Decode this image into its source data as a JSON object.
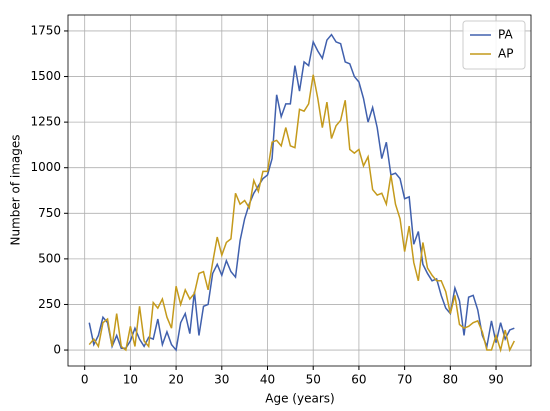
{
  "chart_data": {
    "type": "line",
    "xlabel": "Age (years)",
    "ylabel": "Number of images",
    "x": [
      1,
      2,
      3,
      4,
      5,
      6,
      7,
      8,
      9,
      10,
      11,
      12,
      13,
      14,
      15,
      16,
      17,
      18,
      19,
      20,
      21,
      22,
      23,
      24,
      25,
      26,
      27,
      28,
      29,
      30,
      31,
      32,
      33,
      34,
      35,
      36,
      37,
      38,
      39,
      40,
      41,
      42,
      43,
      44,
      45,
      46,
      47,
      48,
      49,
      50,
      51,
      52,
      53,
      54,
      55,
      56,
      57,
      58,
      59,
      60,
      61,
      62,
      63,
      64,
      65,
      66,
      67,
      68,
      69,
      70,
      71,
      72,
      73,
      74,
      75,
      76,
      77,
      78,
      79,
      80,
      81,
      82,
      83,
      84,
      85,
      86,
      87,
      88,
      89,
      90,
      91,
      92,
      93,
      94
    ],
    "series": [
      {
        "name": "PA",
        "color": "#4060ad",
        "values": [
          150,
          30,
          80,
          180,
          150,
          20,
          80,
          10,
          10,
          50,
          120,
          60,
          20,
          70,
          60,
          170,
          30,
          100,
          30,
          0,
          150,
          200,
          90,
          320,
          80,
          240,
          250,
          420,
          470,
          410,
          490,
          430,
          400,
          600,
          720,
          800,
          860,
          900,
          940,
          960,
          1050,
          1400,
          1280,
          1350,
          1350,
          1560,
          1420,
          1580,
          1560,
          1690,
          1640,
          1600,
          1700,
          1730,
          1690,
          1680,
          1580,
          1570,
          1500,
          1470,
          1380,
          1250,
          1330,
          1220,
          1050,
          1140,
          960,
          970,
          940,
          830,
          840,
          580,
          650,
          470,
          420,
          380,
          390,
          300,
          230,
          200,
          340,
          270,
          80,
          290,
          300,
          220,
          80,
          20,
          160,
          40,
          150,
          60,
          110,
          120
        ]
      },
      {
        "name": "AP",
        "color": "#c49a1c",
        "values": [
          30,
          60,
          20,
          150,
          170,
          20,
          200,
          20,
          0,
          130,
          20,
          240,
          50,
          20,
          260,
          230,
          280,
          180,
          120,
          350,
          250,
          330,
          280,
          310,
          420,
          430,
          330,
          480,
          620,
          520,
          590,
          610,
          860,
          800,
          820,
          780,
          930,
          870,
          980,
          980,
          1140,
          1150,
          1120,
          1220,
          1120,
          1110,
          1320,
          1310,
          1350,
          1510,
          1380,
          1220,
          1360,
          1160,
          1230,
          1260,
          1370,
          1100,
          1080,
          1100,
          1010,
          1060,
          880,
          850,
          860,
          800,
          960,
          800,
          720,
          540,
          680,
          480,
          380,
          590,
          450,
          410,
          380,
          380,
          320,
          200,
          300,
          140,
          120,
          130,
          150,
          160,
          100,
          0,
          0,
          80,
          0,
          110,
          0,
          50
        ]
      }
    ],
    "xlim": [
      -3.65,
      97.65
    ],
    "xticks": [
      0,
      10,
      20,
      30,
      40,
      50,
      60,
      70,
      80,
      90
    ],
    "ylim": [
      -87.5,
      1837.5
    ],
    "yticks": [
      0,
      250,
      500,
      750,
      1000,
      1250,
      1500,
      1750
    ],
    "grid": true,
    "legend": "upper right"
  }
}
